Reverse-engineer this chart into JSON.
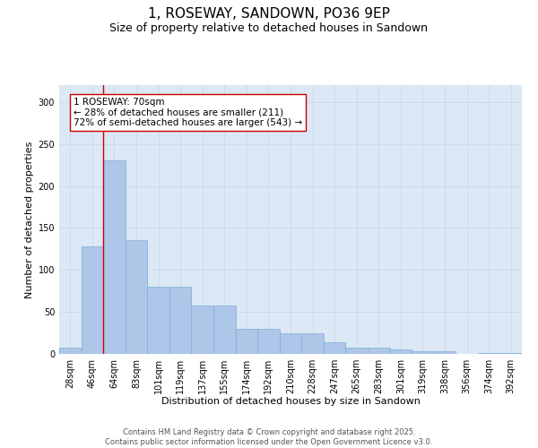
{
  "title_line1": "1, ROSEWAY, SANDOWN, PO36 9EP",
  "title_line2": "Size of property relative to detached houses in Sandown",
  "xlabel": "Distribution of detached houses by size in Sandown",
  "ylabel": "Number of detached properties",
  "categories": [
    "28sqm",
    "46sqm",
    "64sqm",
    "83sqm",
    "101sqm",
    "119sqm",
    "137sqm",
    "155sqm",
    "174sqm",
    "192sqm",
    "210sqm",
    "228sqm",
    "247sqm",
    "265sqm",
    "283sqm",
    "301sqm",
    "319sqm",
    "338sqm",
    "356sqm",
    "374sqm",
    "392sqm"
  ],
  "values": [
    7,
    128,
    230,
    136,
    80,
    80,
    58,
    58,
    30,
    30,
    25,
    25,
    14,
    7,
    7,
    5,
    3,
    3,
    0,
    1,
    1
  ],
  "bar_color": "#aec6e8",
  "bar_edge_color": "#7aafd4",
  "vline_x": 1.5,
  "vline_color": "#cc0000",
  "annotation_text": "1 ROSEWAY: 70sqm\n← 28% of detached houses are smaller (211)\n72% of semi-detached houses are larger (543) →",
  "annotation_box_color": "#ffffff",
  "annotation_box_edge": "#cc0000",
  "ylim": [
    0,
    320
  ],
  "yticks": [
    0,
    50,
    100,
    150,
    200,
    250,
    300
  ],
  "grid_color": "#c8d8e8",
  "background_color": "#dce8f5",
  "footer_text": "Contains HM Land Registry data © Crown copyright and database right 2025.\nContains public sector information licensed under the Open Government Licence v3.0.",
  "title_fontsize": 11,
  "subtitle_fontsize": 9,
  "label_fontsize": 8,
  "tick_fontsize": 7,
  "footer_fontsize": 6,
  "annotation_fontsize": 7.5
}
